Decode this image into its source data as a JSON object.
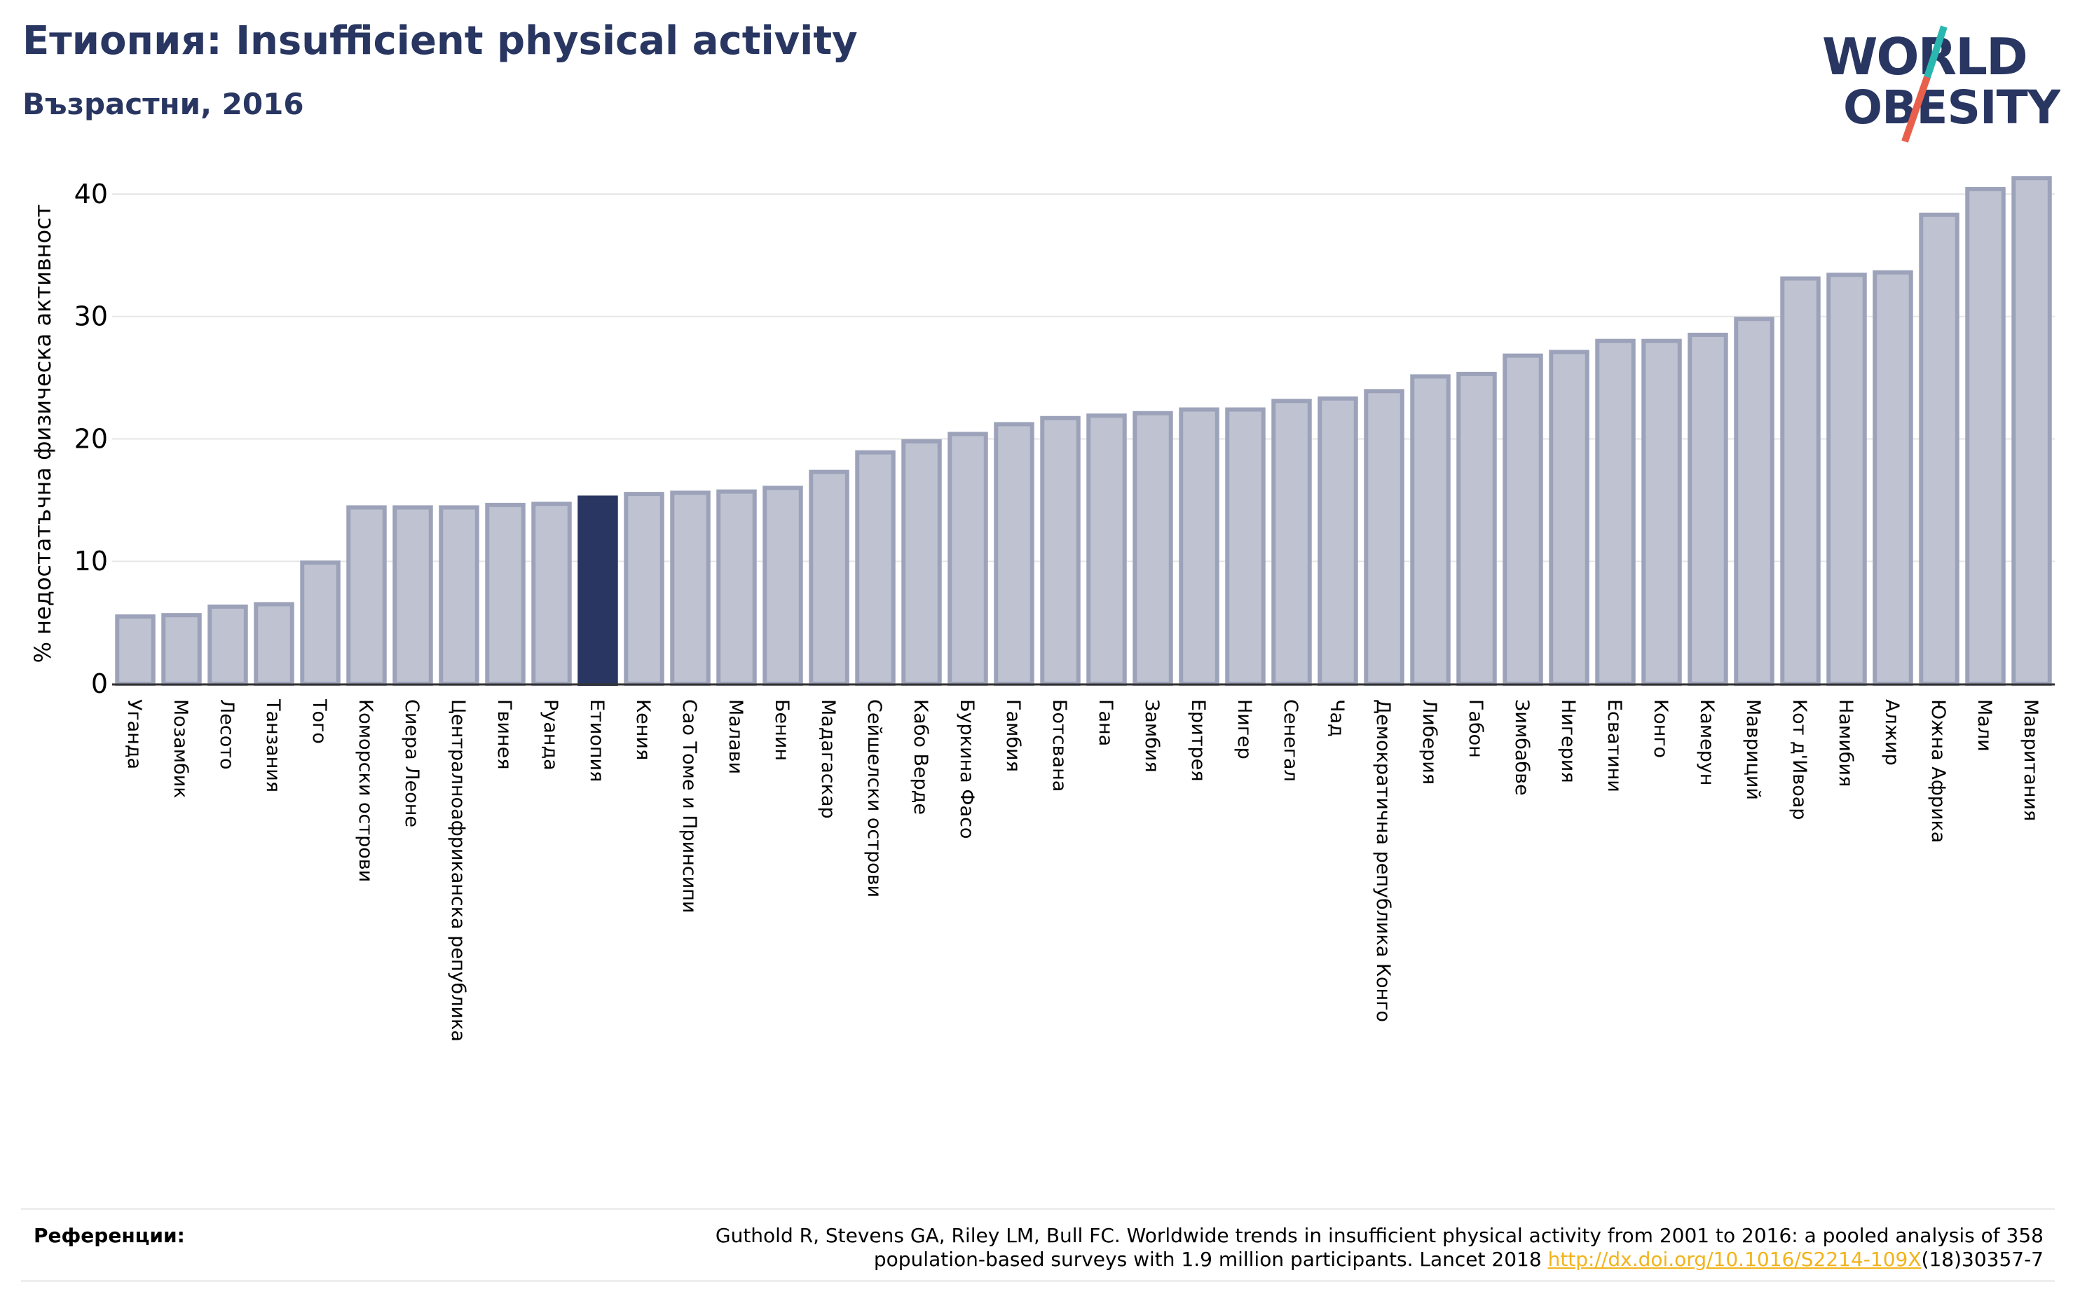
{
  "header": {
    "title": "Етиопия: Insufficient physical activity",
    "subtitle": "Възрастни, 2016"
  },
  "logo": {
    "line1": "WORLD",
    "line2": "OBESITY",
    "slash_color_top": "#2ab7b0",
    "slash_color_bottom": "#e8604c",
    "text_color": "#283661"
  },
  "colors": {
    "highlight": "#283661",
    "bar_fill": "#bfc3d1",
    "bar_edge": "#9ca2b9",
    "grid": "#e6e6e6"
  },
  "chart_data": {
    "type": "bar",
    "ylabel": "% недостатъчна физическа активност",
    "ylim": [
      0,
      42
    ],
    "yticks": [
      0,
      10,
      20,
      30,
      40
    ],
    "highlight": "Етиопия",
    "categories": [
      "Уганда",
      "Мозамбик",
      "Лесото",
      "Танзания",
      "Того",
      "Коморски острови",
      "Сиера Леоне",
      "Централноафриканска република",
      "Гвинея",
      "Руанда",
      "Етиопия",
      "Кения",
      "Сао Томе и Принсипи",
      "Малави",
      "Бенин",
      "Мадагаскар",
      "Сейшелски острови",
      "Кабо Верде",
      "Буркина Фасо",
      "Гамбия",
      "Ботсвана",
      "Гана",
      "Замбия",
      "Еритрея",
      "Нигер",
      "Сенегал",
      "Чад",
      "Демократична република Конго",
      "Либерия",
      "Габон",
      "Зимбабве",
      "Нигерия",
      "Есватини",
      "Конго",
      "Камерун",
      "Мавриций",
      "Кот д'Ивоар",
      "Намибия",
      "Алжир",
      "Южна Африка",
      "Мали",
      "Мавритания"
    ],
    "values": [
      5.5,
      5.6,
      6.3,
      6.5,
      9.9,
      14.4,
      14.4,
      14.4,
      14.6,
      14.7,
      15.2,
      15.5,
      15.6,
      15.7,
      16.0,
      17.3,
      18.9,
      19.8,
      20.4,
      21.2,
      21.7,
      21.9,
      22.1,
      22.4,
      22.4,
      23.1,
      23.3,
      23.9,
      25.1,
      25.3,
      26.8,
      27.1,
      28.0,
      28.0,
      28.5,
      29.8,
      33.1,
      33.4,
      33.6,
      38.3,
      40.4,
      41.3
    ]
  },
  "references": {
    "label": "Референции:",
    "line1": "Guthold R, Stevens GA, Riley LM, Bull FC. Worldwide trends in insufficient physical activity from 2001 to 2016: a pooled analysis of 358",
    "line2_pre": "population-based surveys with 1.9 million participants. Lancet 2018 ",
    "line2_link": "http://dx.doi.org/10.1016/S2214-109X",
    "line2_post": "(18)30357-7"
  }
}
